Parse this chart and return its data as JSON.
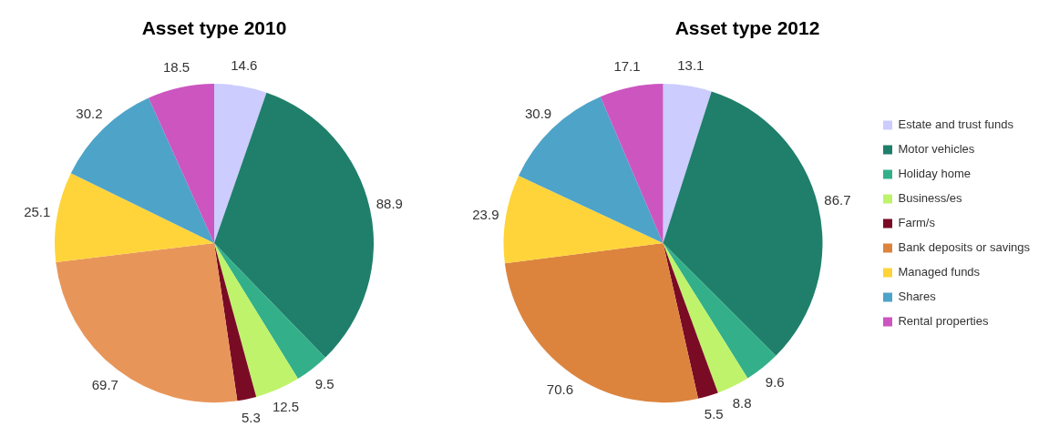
{
  "chart_data": [
    {
      "type": "pie",
      "title": "Asset type 2010",
      "categories": [
        null,
        null,
        null,
        null,
        null,
        null,
        null,
        null,
        null
      ],
      "values": [
        14.6,
        88.9,
        9.5,
        12.5,
        5.3,
        69.7,
        25.1,
        30.2,
        18.5
      ],
      "colors": [
        "#ccccff",
        "#1f7f6b",
        "#33b08a",
        "#bff36b",
        "#7a0b25",
        "#e8955a",
        "#ffd43b",
        "#4ea3c8",
        "#cc55c0"
      ],
      "data_labels": true,
      "legend": false
    },
    {
      "type": "pie",
      "title": "Asset type 2012",
      "categories": [
        "Estate and trust funds",
        "Motor vehicles",
        "Holiday home",
        "Business/es",
        "Farm/s",
        "Bank deposits or savings",
        "Managed funds",
        "Shares",
        "Rental properties"
      ],
      "values": [
        13.1,
        86.7,
        9.6,
        8.8,
        5.5,
        70.6,
        23.9,
        30.9,
        17.1
      ],
      "colors": [
        "#ccccff",
        "#1f7f6b",
        "#33b08a",
        "#bff36b",
        "#7a0b25",
        "#dc843e",
        "#ffd43b",
        "#4ea3c8",
        "#cc55c0"
      ],
      "data_labels": true,
      "legend": "right"
    }
  ]
}
